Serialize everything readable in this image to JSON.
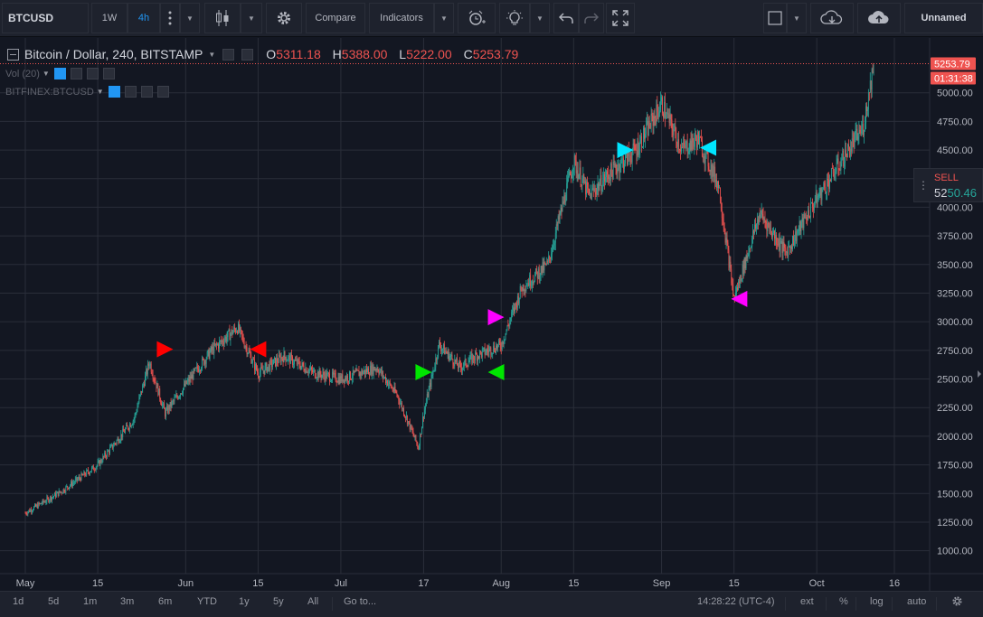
{
  "toolbar": {
    "symbol": "BTCUSD",
    "interval_1w": "1W",
    "interval_4h": "4h",
    "compare_label": "Compare",
    "indicators_label": "Indicators",
    "layout_name": "Unnamed",
    "icons": [
      "more-icon",
      "candles-icon",
      "gear-icon",
      "alert-clock-icon",
      "lightbulb-icon",
      "undo-icon",
      "redo-icon",
      "fullscreen-icon",
      "square-icon",
      "cloud-download-icon",
      "cloud-upload-icon"
    ]
  },
  "legend": {
    "title": "Bitcoin / Dollar, 240, BITSTAMP",
    "o_label": "O",
    "o_value": "5311.18",
    "h_label": "H",
    "h_value": "5388.00",
    "l_label": "L",
    "l_value": "5222.00",
    "c_label": "C",
    "c_value": "5253.79",
    "vol_label": "Vol (20)",
    "compare_symbol": "BITFINEX:BTCUSD"
  },
  "price_axis": {
    "ticks": [
      "5000.00",
      "4750.00",
      "4500.00",
      "4250.00",
      "4000.00",
      "3750.00",
      "3500.00",
      "3250.00",
      "3000.00",
      "2750.00",
      "2500.00",
      "2250.00",
      "2000.00",
      "1750.00",
      "1500.00",
      "1250.00",
      "1000.00"
    ],
    "last_price": "5253.79",
    "countdown": "01:31:38",
    "last_price_color": "#ef5350"
  },
  "sell_widget": {
    "label": "SELL",
    "price_prefix": "52",
    "price_suffix": "50.46"
  },
  "time_axis": {
    "labels": [
      "May",
      "15",
      "Jun",
      "15",
      "Jul",
      "17",
      "Aug",
      "15",
      "Sep",
      "15",
      "Oct",
      "16"
    ]
  },
  "bottom_bar": {
    "ranges": [
      "1d",
      "5d",
      "1m",
      "3m",
      "6m",
      "YTD",
      "1y",
      "5y",
      "All"
    ],
    "goto": "Go to...",
    "clock": "14:28:22 (UTC-4)",
    "ext": "ext",
    "percent": "%",
    "log": "log",
    "auto": "auto"
  },
  "colors": {
    "background": "#131722",
    "grid": "#2a2e39",
    "up": "#26a69a",
    "down": "#ef5350",
    "red_marker": "#ff0000",
    "green_marker": "#00e600",
    "magenta_marker": "#ff00ff",
    "cyan_marker": "#00e5ff"
  },
  "chart_data": {
    "type": "candlestick",
    "title": "Bitcoin / Dollar, 240, BITSTAMP",
    "x": [
      "May 1",
      "May 8",
      "May 15",
      "May 22",
      "May 25",
      "May 28",
      "Jun 1",
      "Jun 6",
      "Jun 11",
      "Jun 15",
      "Jun 20",
      "Jun 26",
      "Jul 1",
      "Jul 8",
      "Jul 12",
      "Jul 16",
      "Jul 17",
      "Jul 20",
      "Jul 24",
      "Jul 27",
      "Aug 1",
      "Aug 5",
      "Aug 10",
      "Aug 15",
      "Aug 18",
      "Aug 22",
      "Aug 27",
      "Sep 1",
      "Sep 5",
      "Sep 8",
      "Sep 12",
      "Sep 15",
      "Sep 20",
      "Sep 25",
      "Sep 30",
      "Oct 5",
      "Oct 10",
      "Oct 12"
    ],
    "close": [
      1330,
      1520,
      1750,
      2150,
      2650,
      2200,
      2450,
      2750,
      2950,
      2550,
      2700,
      2550,
      2500,
      2600,
      2350,
      1900,
      2200,
      2800,
      2600,
      2700,
      2800,
      3300,
      3500,
      4400,
      4100,
      4300,
      4500,
      4900,
      4500,
      4600,
      4200,
      3200,
      3950,
      3600,
      4000,
      4350,
      4700,
      5253.79
    ],
    "ylim": [
      800,
      5400
    ],
    "markers": [
      {
        "date": "May 28",
        "price": 2760,
        "direction": "right",
        "color": "red"
      },
      {
        "date": "Jun 15",
        "price": 2760,
        "direction": "left",
        "color": "red"
      },
      {
        "date": "Jul 17",
        "price": 2560,
        "direction": "right",
        "color": "green"
      },
      {
        "date": "Jul 31",
        "price": 2560,
        "direction": "left",
        "color": "green"
      },
      {
        "date": "Jul 31",
        "price": 3040,
        "direction": "right",
        "color": "magenta"
      },
      {
        "date": "Aug 25",
        "price": 4500,
        "direction": "right",
        "color": "cyan"
      },
      {
        "date": "Sep 10",
        "price": 4520,
        "direction": "left",
        "color": "cyan"
      },
      {
        "date": "Sep 16",
        "price": 3200,
        "direction": "left",
        "color": "magenta"
      }
    ]
  }
}
